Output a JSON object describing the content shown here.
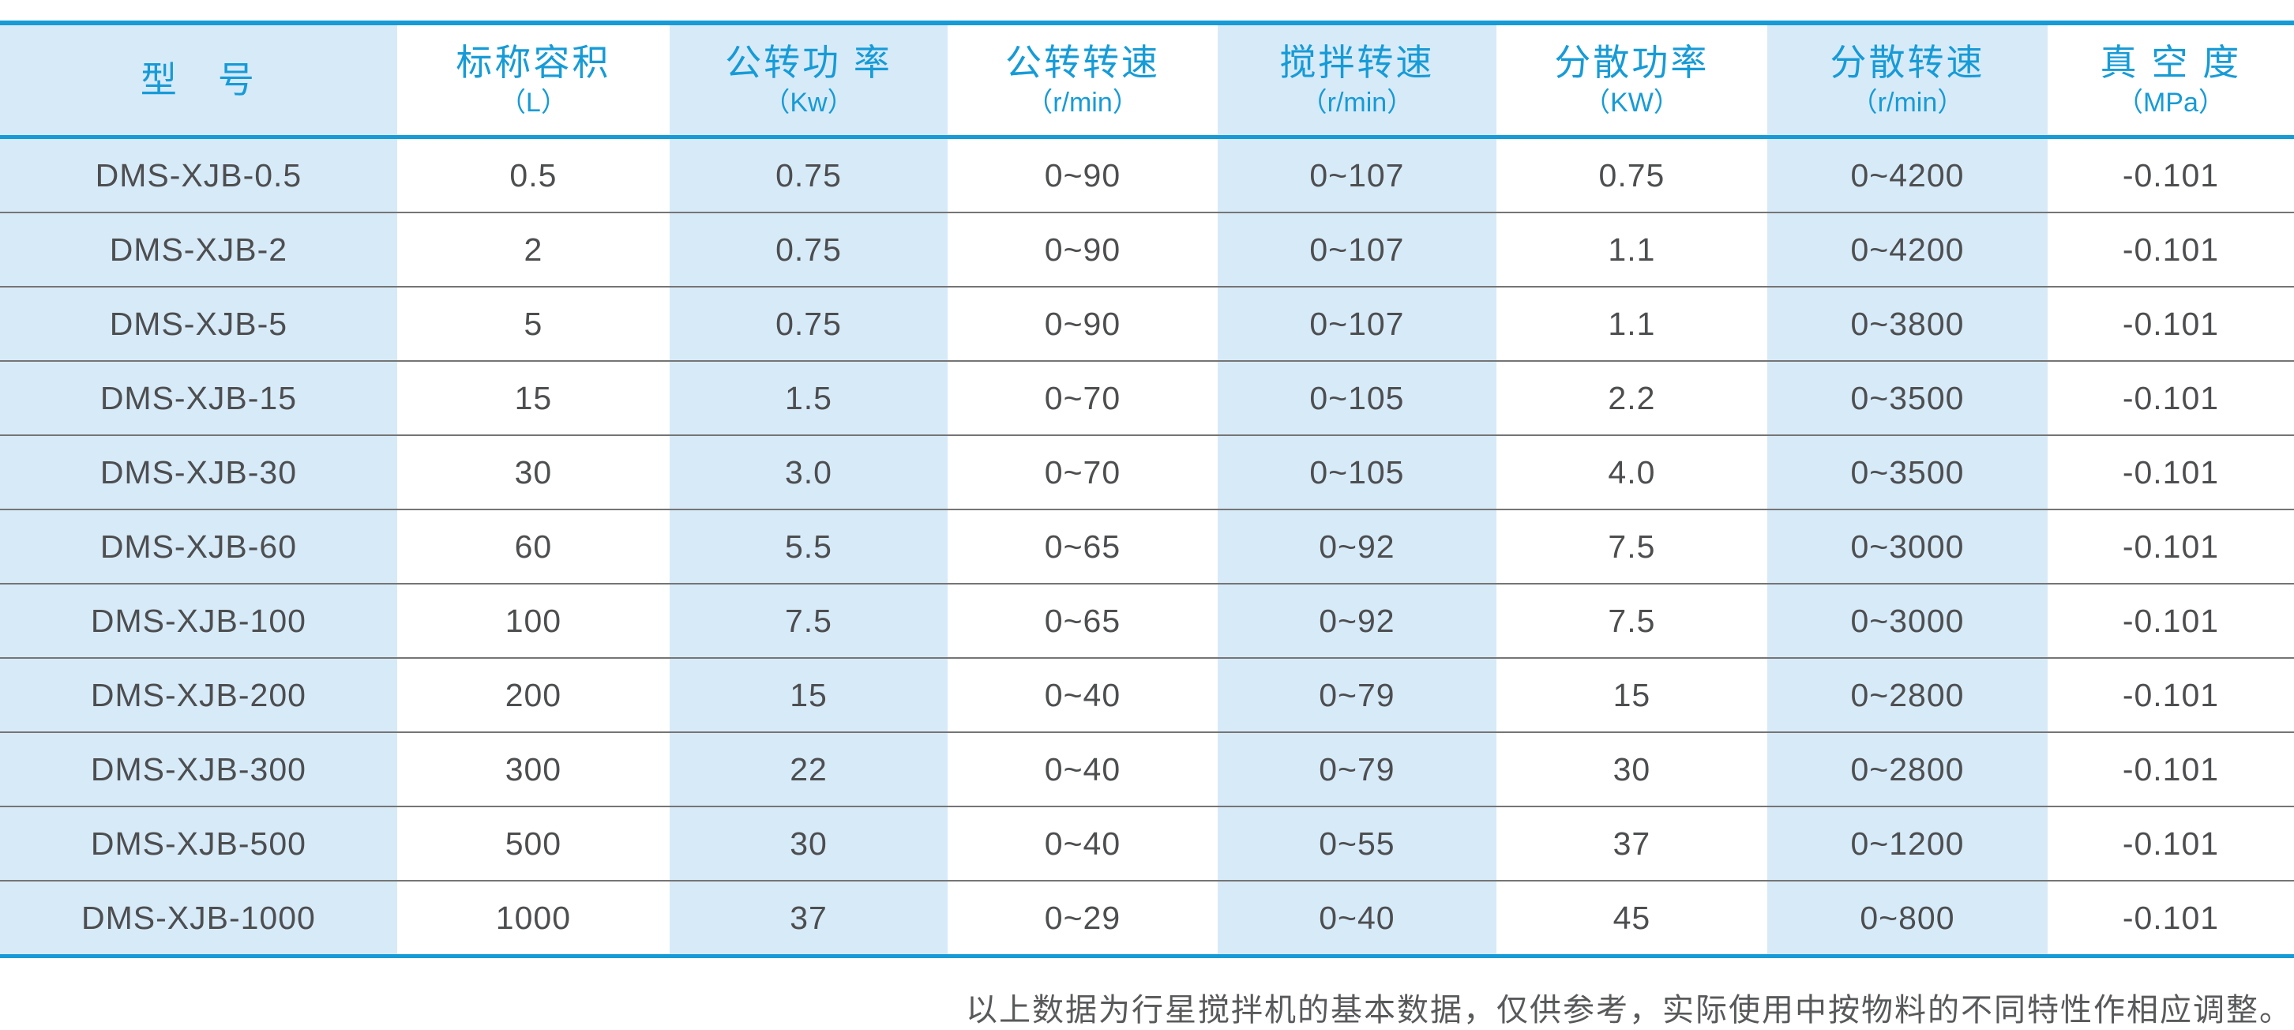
{
  "table": {
    "columns": [
      {
        "title": "型　号",
        "unit": ""
      },
      {
        "title": "标称容积",
        "unit": "（L）"
      },
      {
        "title": "公转功 率",
        "unit": "（Kw）"
      },
      {
        "title": "公转转速",
        "unit": "（r/min）"
      },
      {
        "title": "搅拌转速",
        "unit": "（r/min）"
      },
      {
        "title": "分散功率",
        "unit": "（KW）"
      },
      {
        "title": "分散转速",
        "unit": "（r/min）"
      },
      {
        "title": "真 空 度",
        "unit": "（MPa）"
      }
    ],
    "rows": [
      [
        "DMS-XJB-0.5",
        "0.5",
        "0.75",
        "0~90",
        "0~107",
        "0.75",
        "0~4200",
        "-0.101"
      ],
      [
        "DMS-XJB-2",
        "2",
        "0.75",
        "0~90",
        "0~107",
        "1.1",
        "0~4200",
        "-0.101"
      ],
      [
        "DMS-XJB-5",
        "5",
        "0.75",
        "0~90",
        "0~107",
        "1.1",
        "0~3800",
        "-0.101"
      ],
      [
        "DMS-XJB-15",
        "15",
        "1.5",
        "0~70",
        "0~105",
        "2.2",
        "0~3500",
        "-0.101"
      ],
      [
        "DMS-XJB-30",
        "30",
        "3.0",
        "0~70",
        "0~105",
        "4.0",
        "0~3500",
        "-0.101"
      ],
      [
        "DMS-XJB-60",
        "60",
        "5.5",
        "0~65",
        "0~92",
        "7.5",
        "0~3000",
        "-0.101"
      ],
      [
        "DMS-XJB-100",
        "100",
        "7.5",
        "0~65",
        "0~92",
        "7.5",
        "0~3000",
        "-0.101"
      ],
      [
        "DMS-XJB-200",
        "200",
        "15",
        "0~40",
        "0~79",
        "15",
        "0~2800",
        "-0.101"
      ],
      [
        "DMS-XJB-300",
        "300",
        "22",
        "0~40",
        "0~79",
        "30",
        "0~2800",
        "-0.101"
      ],
      [
        "DMS-XJB-500",
        "500",
        "30",
        "0~40",
        "0~55",
        "37",
        "0~1200",
        "-0.101"
      ],
      [
        "DMS-XJB-1000",
        "1000",
        "37",
        "0~29",
        "0~40",
        "45",
        "0~800",
        "-0.101"
      ]
    ]
  },
  "footnote": "以上数据为行星搅拌机的基本数据，仅供参考，实际使用中按物料的不同特性作相应调整。",
  "colors": {
    "accent_blue": "#169bd7",
    "stripe_blue": "#d7eaf8",
    "cell_text": "#4d4e50",
    "row_line": "#757575",
    "footnote_text": "#58595b"
  }
}
